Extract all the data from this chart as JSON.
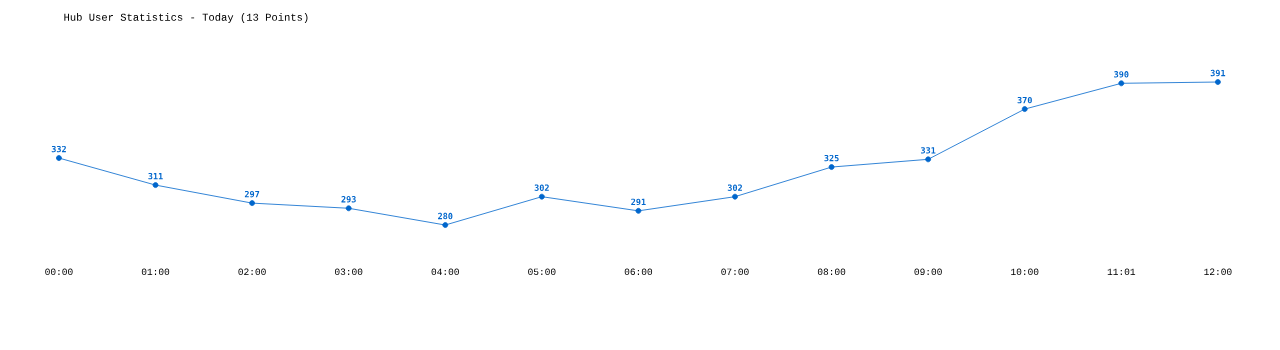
{
  "chart_data": {
    "type": "line",
    "title": "Hub User Statistics - Today (13 Points)",
    "categories": [
      "00:00",
      "01:00",
      "02:00",
      "03:00",
      "04:00",
      "05:00",
      "06:00",
      "07:00",
      "08:00",
      "09:00",
      "10:00",
      "11:01",
      "12:00"
    ],
    "series": [
      {
        "color": "#0066cc",
        "values": [
          332,
          311,
          297,
          293,
          280,
          302,
          291,
          302,
          325,
          331,
          370,
          390,
          391
        ]
      }
    ],
    "data_labels": true,
    "marker": "circle",
    "line_style": "solid"
  }
}
